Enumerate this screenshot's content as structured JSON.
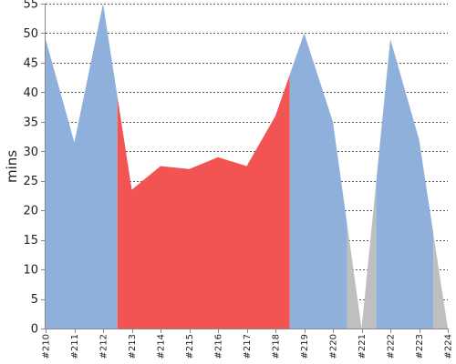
{
  "chart_data": {
    "type": "area",
    "title": "",
    "xlabel": "",
    "ylabel": "mins",
    "ylim": [
      0,
      55
    ],
    "yticks": [
      0,
      5,
      10,
      15,
      20,
      25,
      30,
      35,
      40,
      45,
      50,
      55
    ],
    "grid": true,
    "categories": [
      "#210",
      "#211",
      "#212",
      "#213",
      "#214",
      "#215",
      "#216",
      "#217",
      "#218",
      "#219",
      "#220",
      "#221",
      "#222",
      "#223",
      "#224"
    ],
    "values": [
      49,
      31.5,
      55,
      23.5,
      27.5,
      27,
      29,
      27.5,
      36,
      50,
      35,
      0,
      49,
      32,
      0
    ],
    "segments": [
      {
        "status": "success",
        "from": "#210",
        "to": "#212.5",
        "color": "#8eb0da"
      },
      {
        "status": "failure",
        "from": "#212.5",
        "to": "#218.5",
        "color": "#f25454"
      },
      {
        "status": "success",
        "from": "#218.5",
        "to": "#220.5",
        "color": "#8eb0da"
      },
      {
        "status": "aborted",
        "from": "#220.5",
        "to": "#221.5",
        "color": "#bfbfbf"
      },
      {
        "status": "success",
        "from": "#221.5",
        "to": "#223.5",
        "color": "#8eb0da"
      },
      {
        "status": "aborted",
        "from": "#223.5",
        "to": "#224",
        "color": "#bfbfbf"
      }
    ]
  }
}
